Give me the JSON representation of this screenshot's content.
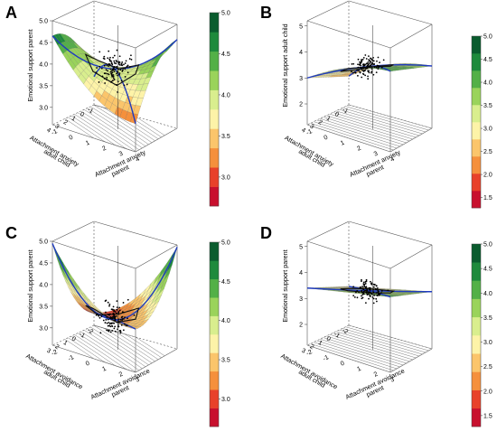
{
  "chart_data": [
    {
      "panel": "A",
      "type": "surface3d",
      "zlabel": "Emotional support parent",
      "xlabel": "Attachment anxiety\nparent",
      "ylabel": "Attachment anxiety\nadult child",
      "xticks": [
        "-1",
        "0",
        "1",
        "2",
        "3",
        "4"
      ],
      "yticks": [
        "-1",
        "0",
        "1",
        "2",
        "3",
        "4"
      ],
      "zticks": [
        "3.0",
        "3.5",
        "4.0",
        "4.5",
        "5.0"
      ],
      "zlim": [
        2.6,
        5.0
      ],
      "colorbar": [
        "3.0",
        "3.5",
        "4.0",
        "4.5",
        "5.0"
      ],
      "shape": "saddle"
    },
    {
      "panel": "B",
      "type": "surface3d",
      "zlabel": "Emotional support adult child",
      "xlabel": "Attachment anxiety\nparent",
      "ylabel": "Attachment anxiety\nadult child",
      "xticks": [
        "-1",
        "0",
        "1",
        "2",
        "3",
        "4"
      ],
      "yticks": [
        "-1",
        "0",
        "1",
        "2",
        "3",
        "4"
      ],
      "zticks": [
        "2",
        "3",
        "4",
        "5"
      ],
      "zlim": [
        1.2,
        5.2
      ],
      "colorbar": [
        "1.5",
        "2.0",
        "2.5",
        "3.0",
        "3.5",
        "4.0",
        "4.5",
        "5.0"
      ],
      "shape": "tilted"
    },
    {
      "panel": "C",
      "type": "surface3d",
      "zlabel": "Emotional support parent",
      "xlabel": "Attachment avoidance\nparent",
      "ylabel": "Attachment avoidance\nadult child",
      "xticks": [
        "-2",
        "-1",
        "0",
        "1",
        "2",
        "3"
      ],
      "yticks": [
        "-2",
        "-1",
        "0",
        "1",
        "2",
        "3"
      ],
      "zticks": [
        "3.0",
        "3.5",
        "4.0",
        "4.5",
        "5.0"
      ],
      "zlim": [
        2.6,
        5.0
      ],
      "colorbar": [
        "3.0",
        "3.5",
        "4.0",
        "4.5",
        "5.0"
      ],
      "shape": "valley"
    },
    {
      "panel": "D",
      "type": "surface3d",
      "zlabel": "Emotional support parent",
      "xlabel": "Attachment avoidance\nparent",
      "ylabel": "Attachment avoidance\nadult child",
      "xticks": [
        "-2",
        "-1",
        "0",
        "1",
        "2",
        "3"
      ],
      "yticks": [
        "-2",
        "-1",
        "0",
        "1",
        "2",
        "3"
      ],
      "zticks": [
        "2",
        "3",
        "4",
        "5"
      ],
      "zlim": [
        1.2,
        5.2
      ],
      "colorbar": [
        "1.5",
        "2.0",
        "2.5",
        "3.0",
        "3.5",
        "4.0",
        "4.5",
        "5.0"
      ],
      "shape": "plane"
    }
  ],
  "colors": {
    "bins": [
      "#c8102e",
      "#e8412a",
      "#f5903c",
      "#fbc56b",
      "#fdf3a8",
      "#d9ee8e",
      "#9ad35b",
      "#53b047",
      "#1e8a3c",
      "#0a5c2e"
    ],
    "fit_line": "#1f3bbf",
    "points": "#000000",
    "grid_lines": "#888888",
    "contour_lines": "#777777"
  }
}
